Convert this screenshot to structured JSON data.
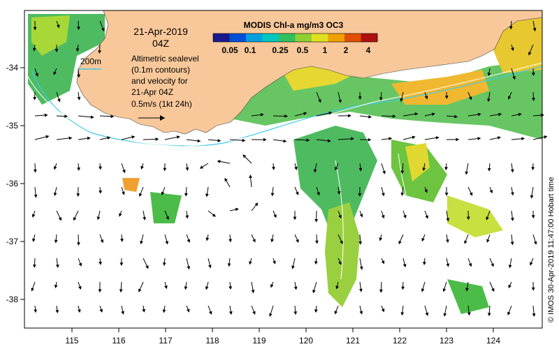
{
  "map": {
    "date_line1": "21-Apr-2019",
    "date_line2": "04Z",
    "isobath_label": "200m",
    "sealevel_note": [
      "Altimetric sealevel",
      "(0.1m contours)",
      "and velocity for",
      "21-Apr 04Z"
    ],
    "scale_arrow_label": "0.5m/s (1kt 24h)",
    "credit": "© IMOS 30-Apr-2019 11:47:00 Hobart time"
  },
  "colorbar": {
    "title": "MODIS Chl-a mg/m3 OC3",
    "ticks": [
      "0.05",
      "0.1",
      "0.25",
      "0.5",
      "1",
      "2",
      "4"
    ],
    "colors": [
      "#1a1a8c",
      "#0050d8",
      "#00a0e0",
      "#00c8c0",
      "#30c060",
      "#90d030",
      "#e0e020",
      "#f0a000",
      "#e05000",
      "#b01010"
    ]
  },
  "axes": {
    "x_ticks": [
      "115",
      "116",
      "117",
      "118",
      "119",
      "120",
      "121",
      "122",
      "123",
      "124"
    ],
    "y_ticks": [
      "-34",
      "-35",
      "-36",
      "-37",
      "-38"
    ],
    "x_range": [
      114.0,
      125.0
    ],
    "y_range": [
      -38.5,
      -33.1
    ]
  },
  "colors": {
    "land": "#f8c89a",
    "isobath": "#40c8e8",
    "background": "#ffffff"
  }
}
